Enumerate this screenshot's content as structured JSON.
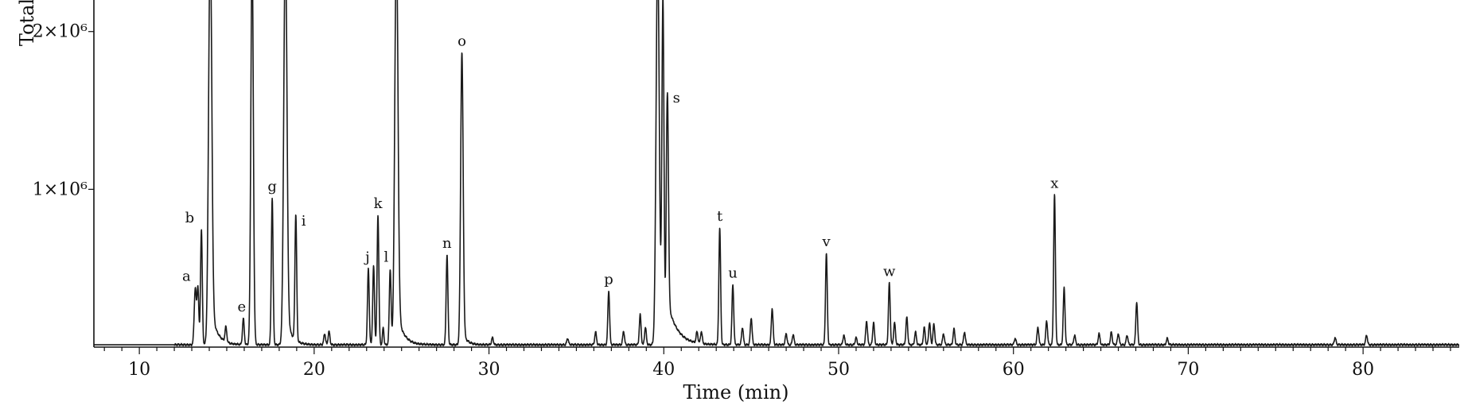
{
  "chart_data": {
    "type": "line",
    "title": "",
    "xlabel": "Time (min)",
    "ylabel": "Total",
    "xlim": [
      7.4,
      85.5
    ],
    "ylim": [
      0,
      2200000
    ],
    "x_ticks": [
      10,
      20,
      30,
      40,
      50,
      60,
      70,
      80
    ],
    "x_tick_labels": [
      "10",
      "20",
      "30",
      "40",
      "50",
      "60",
      "70",
      "80"
    ],
    "y_ticks": [
      1000000,
      2000000
    ],
    "y_tick_labels": [
      "1×10⁶",
      "2×10⁶"
    ],
    "grid": false,
    "legend": "none",
    "line_color": "#1a1a1a",
    "baseline": 15000,
    "peaks": [
      {
        "label": "",
        "x": 13.2,
        "y": 360000,
        "w": 0.06
      },
      {
        "label": "a",
        "x": 13.35,
        "y": 360000,
        "w": 0.05
      },
      {
        "label": "b",
        "x": 13.55,
        "y": 730000,
        "w": 0.05
      },
      {
        "label": "",
        "x": 14.05,
        "y": 2500000,
        "w": 0.09
      },
      {
        "label": "",
        "x": 14.95,
        "y": 95000,
        "w": 0.05
      },
      {
        "label": "e",
        "x": 15.95,
        "y": 165000,
        "w": 0.05
      },
      {
        "label": "",
        "x": 16.45,
        "y": 2500000,
        "w": 0.07
      },
      {
        "label": "g",
        "x": 17.6,
        "y": 930000,
        "w": 0.05
      },
      {
        "label": "",
        "x": 18.35,
        "y": 2500000,
        "w": 0.09
      },
      {
        "label": "i",
        "x": 18.95,
        "y": 800000,
        "w": 0.05
      },
      {
        "label": "",
        "x": 20.6,
        "y": 70000,
        "w": 0.05
      },
      {
        "label": "",
        "x": 20.85,
        "y": 85000,
        "w": 0.05
      },
      {
        "label": "j",
        "x": 23.1,
        "y": 480000,
        "w": 0.05
      },
      {
        "label": "",
        "x": 23.4,
        "y": 500000,
        "w": 0.05
      },
      {
        "label": "k",
        "x": 23.65,
        "y": 820000,
        "w": 0.05
      },
      {
        "label": "",
        "x": 23.95,
        "y": 110000,
        "w": 0.04
      },
      {
        "label": "l",
        "x": 24.35,
        "y": 480000,
        "w": 0.05
      },
      {
        "label": "",
        "x": 24.7,
        "y": 2500000,
        "w": 0.09
      },
      {
        "label": "n",
        "x": 27.6,
        "y": 570000,
        "w": 0.05
      },
      {
        "label": "o",
        "x": 28.45,
        "y": 1850000,
        "w": 0.07
      },
      {
        "label": "",
        "x": 30.2,
        "y": 45000,
        "w": 0.05
      },
      {
        "label": "",
        "x": 34.5,
        "y": 40000,
        "w": 0.05
      },
      {
        "label": "",
        "x": 36.1,
        "y": 80000,
        "w": 0.05
      },
      {
        "label": "p",
        "x": 36.85,
        "y": 340000,
        "w": 0.05
      },
      {
        "label": "",
        "x": 37.7,
        "y": 85000,
        "w": 0.05
      },
      {
        "label": "",
        "x": 38.65,
        "y": 190000,
        "w": 0.05
      },
      {
        "label": "",
        "x": 38.95,
        "y": 110000,
        "w": 0.05
      },
      {
        "label": "",
        "x": 39.65,
        "y": 2500000,
        "w": 0.09
      },
      {
        "label": "",
        "x": 39.95,
        "y": 2200000,
        "w": 0.06
      },
      {
        "label": "s",
        "x": 40.2,
        "y": 1580000,
        "w": 0.06
      },
      {
        "label": "",
        "x": 41.9,
        "y": 70000,
        "w": 0.05
      },
      {
        "label": "",
        "x": 42.15,
        "y": 75000,
        "w": 0.05
      },
      {
        "label": "t",
        "x": 43.2,
        "y": 740000,
        "w": 0.05
      },
      {
        "label": "u",
        "x": 43.95,
        "y": 380000,
        "w": 0.05
      },
      {
        "label": "",
        "x": 44.5,
        "y": 110000,
        "w": 0.05
      },
      {
        "label": "",
        "x": 45.0,
        "y": 170000,
        "w": 0.05
      },
      {
        "label": "",
        "x": 46.2,
        "y": 230000,
        "w": 0.05
      },
      {
        "label": "",
        "x": 47.0,
        "y": 70000,
        "w": 0.05
      },
      {
        "label": "",
        "x": 47.4,
        "y": 65000,
        "w": 0.05
      },
      {
        "label": "v",
        "x": 49.3,
        "y": 580000,
        "w": 0.05
      },
      {
        "label": "",
        "x": 50.3,
        "y": 60000,
        "w": 0.05
      },
      {
        "label": "",
        "x": 51.0,
        "y": 45000,
        "w": 0.05
      },
      {
        "label": "",
        "x": 51.6,
        "y": 150000,
        "w": 0.05
      },
      {
        "label": "",
        "x": 52.0,
        "y": 140000,
        "w": 0.05
      },
      {
        "label": "w",
        "x": 52.9,
        "y": 390000,
        "w": 0.05
      },
      {
        "label": "",
        "x": 53.2,
        "y": 140000,
        "w": 0.05
      },
      {
        "label": "",
        "x": 53.9,
        "y": 175000,
        "w": 0.05
      },
      {
        "label": "",
        "x": 54.4,
        "y": 80000,
        "w": 0.05
      },
      {
        "label": "",
        "x": 54.9,
        "y": 110000,
        "w": 0.05
      },
      {
        "label": "",
        "x": 55.2,
        "y": 140000,
        "w": 0.05
      },
      {
        "label": "",
        "x": 55.45,
        "y": 130000,
        "w": 0.05
      },
      {
        "label": "",
        "x": 56.0,
        "y": 70000,
        "w": 0.05
      },
      {
        "label": "",
        "x": 56.6,
        "y": 100000,
        "w": 0.05
      },
      {
        "label": "",
        "x": 57.2,
        "y": 80000,
        "w": 0.05
      },
      {
        "label": "",
        "x": 60.1,
        "y": 40000,
        "w": 0.05
      },
      {
        "label": "",
        "x": 61.4,
        "y": 110000,
        "w": 0.05
      },
      {
        "label": "",
        "x": 61.9,
        "y": 150000,
        "w": 0.05
      },
      {
        "label": "x",
        "x": 62.35,
        "y": 950000,
        "w": 0.05
      },
      {
        "label": "",
        "x": 62.9,
        "y": 360000,
        "w": 0.05
      },
      {
        "label": "",
        "x": 63.5,
        "y": 60000,
        "w": 0.05
      },
      {
        "label": "",
        "x": 64.9,
        "y": 70000,
        "w": 0.05
      },
      {
        "label": "",
        "x": 65.6,
        "y": 80000,
        "w": 0.05
      },
      {
        "label": "",
        "x": 66.0,
        "y": 70000,
        "w": 0.05
      },
      {
        "label": "",
        "x": 66.5,
        "y": 60000,
        "w": 0.05
      },
      {
        "label": "",
        "x": 67.05,
        "y": 270000,
        "w": 0.05
      },
      {
        "label": "",
        "x": 68.8,
        "y": 40000,
        "w": 0.05
      },
      {
        "label": "",
        "x": 78.4,
        "y": 45000,
        "w": 0.05
      },
      {
        "label": "",
        "x": 80.2,
        "y": 60000,
        "w": 0.05
      }
    ],
    "tails": [
      {
        "x": 14.05,
        "decay": 0.35,
        "amp": 260000
      },
      {
        "x": 18.35,
        "decay": 0.3,
        "amp": 220000
      },
      {
        "x": 24.7,
        "decay": 0.35,
        "amp": 240000
      },
      {
        "x": 28.45,
        "decay": 0.25,
        "amp": 90000
      },
      {
        "x": 40.2,
        "decay": 0.55,
        "amp": 280000
      }
    ]
  }
}
